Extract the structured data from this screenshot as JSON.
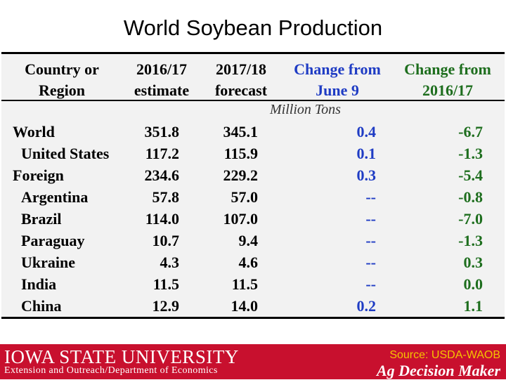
{
  "title": "World Soybean Production",
  "headers": {
    "region": [
      "Country or",
      "Region"
    ],
    "estimate": [
      "2016/17",
      "estimate"
    ],
    "forecast": [
      "2017/18",
      "forecast"
    ],
    "change_june": [
      "Change from",
      "June 9"
    ],
    "change_prev": [
      "Change from",
      "2016/17"
    ]
  },
  "units": "Million Tons",
  "rows": [
    {
      "name": "World",
      "est": "351.8",
      "fc": "345.1",
      "chg_june": "0.4",
      "chg_prev": "-6.7"
    },
    {
      "name": "United States",
      "est": "117.2",
      "fc": "115.9",
      "chg_june": "0.1",
      "chg_prev": "-1.3"
    },
    {
      "name": "Foreign",
      "est": "234.6",
      "fc": "229.2",
      "chg_june": "0.3",
      "chg_prev": "-5.4"
    },
    {
      "name": "Argentina",
      "est": "57.8",
      "fc": "57.0",
      "chg_june": "--",
      "chg_prev": "-0.8"
    },
    {
      "name": "Brazil",
      "est": "114.0",
      "fc": "107.0",
      "chg_june": "--",
      "chg_prev": "-7.0"
    },
    {
      "name": "Paraguay",
      "est": "10.7",
      "fc": "9.4",
      "chg_june": "--",
      "chg_prev": "-1.3"
    },
    {
      "name": "Ukraine",
      "est": "4.3",
      "fc": "4.6",
      "chg_june": "--",
      "chg_prev": "0.3"
    },
    {
      "name": "India",
      "est": "11.5",
      "fc": "11.5",
      "chg_june": "--",
      "chg_prev": "0.0"
    },
    {
      "name": "China",
      "est": "12.9",
      "fc": "14.0",
      "chg_june": "0.2",
      "chg_prev": "1.1"
    }
  ],
  "footer": {
    "university": "IOWA STATE UNIVERSITY",
    "department": "Extension and Outreach/Department of Economics",
    "source": "Source: USDA-WAOB",
    "brand": "Ag Decision Maker"
  },
  "colors": {
    "june_change": "#1f3cc4",
    "prev_change": "#1e6e1e",
    "footer_bg": "#c8102e",
    "source_text": "#f5c400"
  }
}
